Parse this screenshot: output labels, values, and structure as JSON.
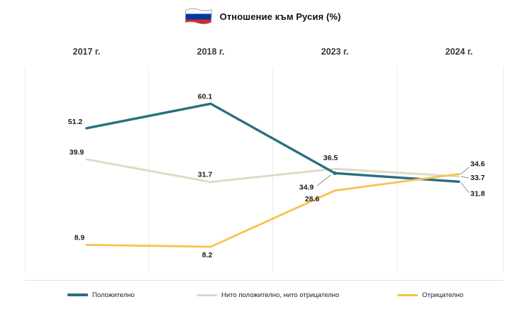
{
  "header": {
    "title": "Отношение към Русия (%)"
  },
  "icons": {
    "flag": "russia-flag-icon"
  },
  "chart_data": {
    "type": "line",
    "title": "Отношение към Русия (%)",
    "categories": [
      "2017 г.",
      "2018 г.",
      "2023 г.",
      "2024 г."
    ],
    "series": [
      {
        "name": "Положително",
        "color": "#27707e",
        "values": [
          51.2,
          60.1,
          34.9,
          31.8
        ]
      },
      {
        "name": "Нито положително, нито отрицателно",
        "color": "#ddd9c4",
        "values": [
          39.9,
          31.7,
          36.5,
          33.7
        ]
      },
      {
        "name": "Отрицателно",
        "color": "#f6c34f",
        "values": [
          8.9,
          8.2,
          28.6,
          34.6
        ]
      }
    ],
    "ylim": [
      0,
      72
    ],
    "xlabel": "",
    "ylabel": "",
    "grid": "vertical-separators",
    "legend_position": "bottom",
    "data_labels": true
  }
}
